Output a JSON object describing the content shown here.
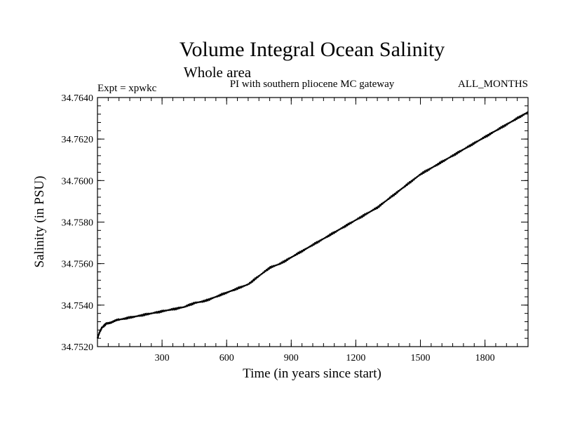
{
  "chart_data": {
    "type": "line",
    "title": "Volume Integral Ocean Salinity",
    "subtitle": "Whole area",
    "left_note": "Expt = xpwkc",
    "center_note": "PI with southern pliocene MC gateway",
    "right_note": "ALL_MONTHS",
    "xlabel": "Time (in years since start)",
    "ylabel": "Salinity (in PSU)",
    "xlim": [
      0,
      2000
    ],
    "ylim": [
      34.752,
      34.764
    ],
    "xticks": [
      300,
      600,
      900,
      1200,
      1500,
      1800
    ],
    "xtick_labels": [
      "300",
      "600",
      "900",
      "1200",
      "1500",
      "1800"
    ],
    "yticks": [
      34.752,
      34.754,
      34.756,
      34.758,
      34.76,
      34.762,
      34.764
    ],
    "ytick_labels": [
      "34.7520",
      "34.7540",
      "34.7560",
      "34.7580",
      "34.7600",
      "34.7620",
      "34.7640"
    ],
    "series": [
      {
        "name": "Salinity",
        "x": [
          0,
          10,
          20,
          40,
          70,
          100,
          150,
          200,
          250,
          300,
          350,
          400,
          450,
          500,
          550,
          600,
          650,
          700,
          750,
          800,
          850,
          900,
          950,
          1000,
          1050,
          1100,
          1150,
          1200,
          1250,
          1300,
          1350,
          1400,
          1450,
          1500,
          1550,
          1600,
          1650,
          1700,
          1750,
          1800,
          1850,
          1900,
          1950,
          2000
        ],
        "values": [
          34.7524,
          34.7527,
          34.7529,
          34.7531,
          34.7532,
          34.7533,
          34.7534,
          34.7535,
          34.7536,
          34.7537,
          34.7538,
          34.7539,
          34.7541,
          34.7542,
          34.7544,
          34.7546,
          34.7548,
          34.755,
          34.7554,
          34.7558,
          34.756,
          34.7563,
          34.7566,
          34.7569,
          34.7572,
          34.7575,
          34.7578,
          34.7581,
          34.7584,
          34.7587,
          34.7591,
          34.7595,
          34.7599,
          34.7603,
          34.7606,
          34.7609,
          34.7612,
          34.7615,
          34.7618,
          34.7621,
          34.7624,
          34.7627,
          34.763,
          34.7633
        ]
      }
    ]
  }
}
